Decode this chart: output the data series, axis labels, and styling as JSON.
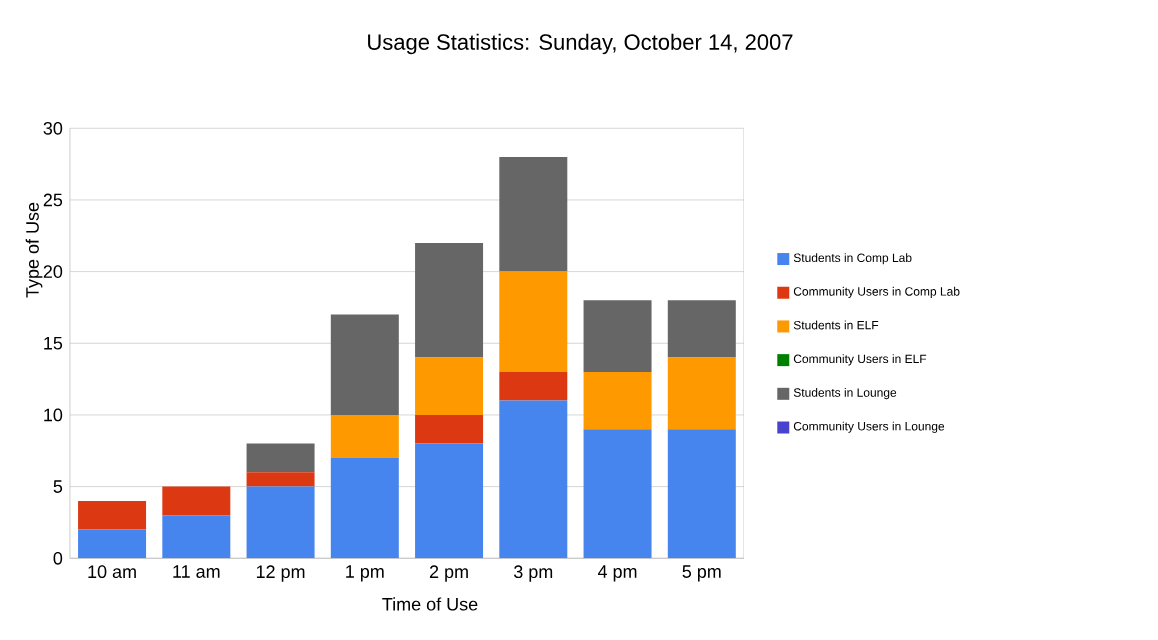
{
  "chart_data": {
    "type": "bar",
    "title": "Usage Statistics: Sunday, October 14, 2007",
    "xlabel": "Time of Use",
    "ylabel": "Type of Use",
    "categories": [
      "10 am",
      "11 am",
      "12 pm",
      "1 pm",
      "2 pm",
      "3 pm",
      "4 pm",
      "5 pm"
    ],
    "stacked": true,
    "ylim": [
      0,
      30
    ],
    "yticks": [
      0,
      5,
      10,
      15,
      20,
      25,
      30
    ],
    "grid": "y",
    "legend": "right",
    "series": [
      {
        "name": "Students in Comp Lab",
        "color": "#4684ee",
        "values": [
          2,
          3,
          5,
          7,
          8,
          11,
          9,
          9
        ]
      },
      {
        "name": "Community Users in Comp Lab",
        "color": "#dc3912",
        "values": [
          2,
          2,
          1,
          0,
          2,
          2,
          0,
          0
        ]
      },
      {
        "name": "Students in ELF",
        "color": "#ff9900",
        "values": [
          0,
          0,
          0,
          3,
          4,
          7,
          4,
          5
        ]
      },
      {
        "name": "Community Users in ELF",
        "color": "#008000",
        "values": [
          0,
          0,
          0,
          0,
          0,
          0,
          0,
          0
        ]
      },
      {
        "name": "Students in Lounge",
        "color": "#666666",
        "values": [
          0,
          0,
          2,
          7,
          8,
          8,
          5,
          4
        ]
      },
      {
        "name": "Community Users in Lounge",
        "color": "#4942cc",
        "values": [
          0,
          0,
          0,
          0,
          0,
          0,
          0,
          0
        ]
      }
    ]
  }
}
